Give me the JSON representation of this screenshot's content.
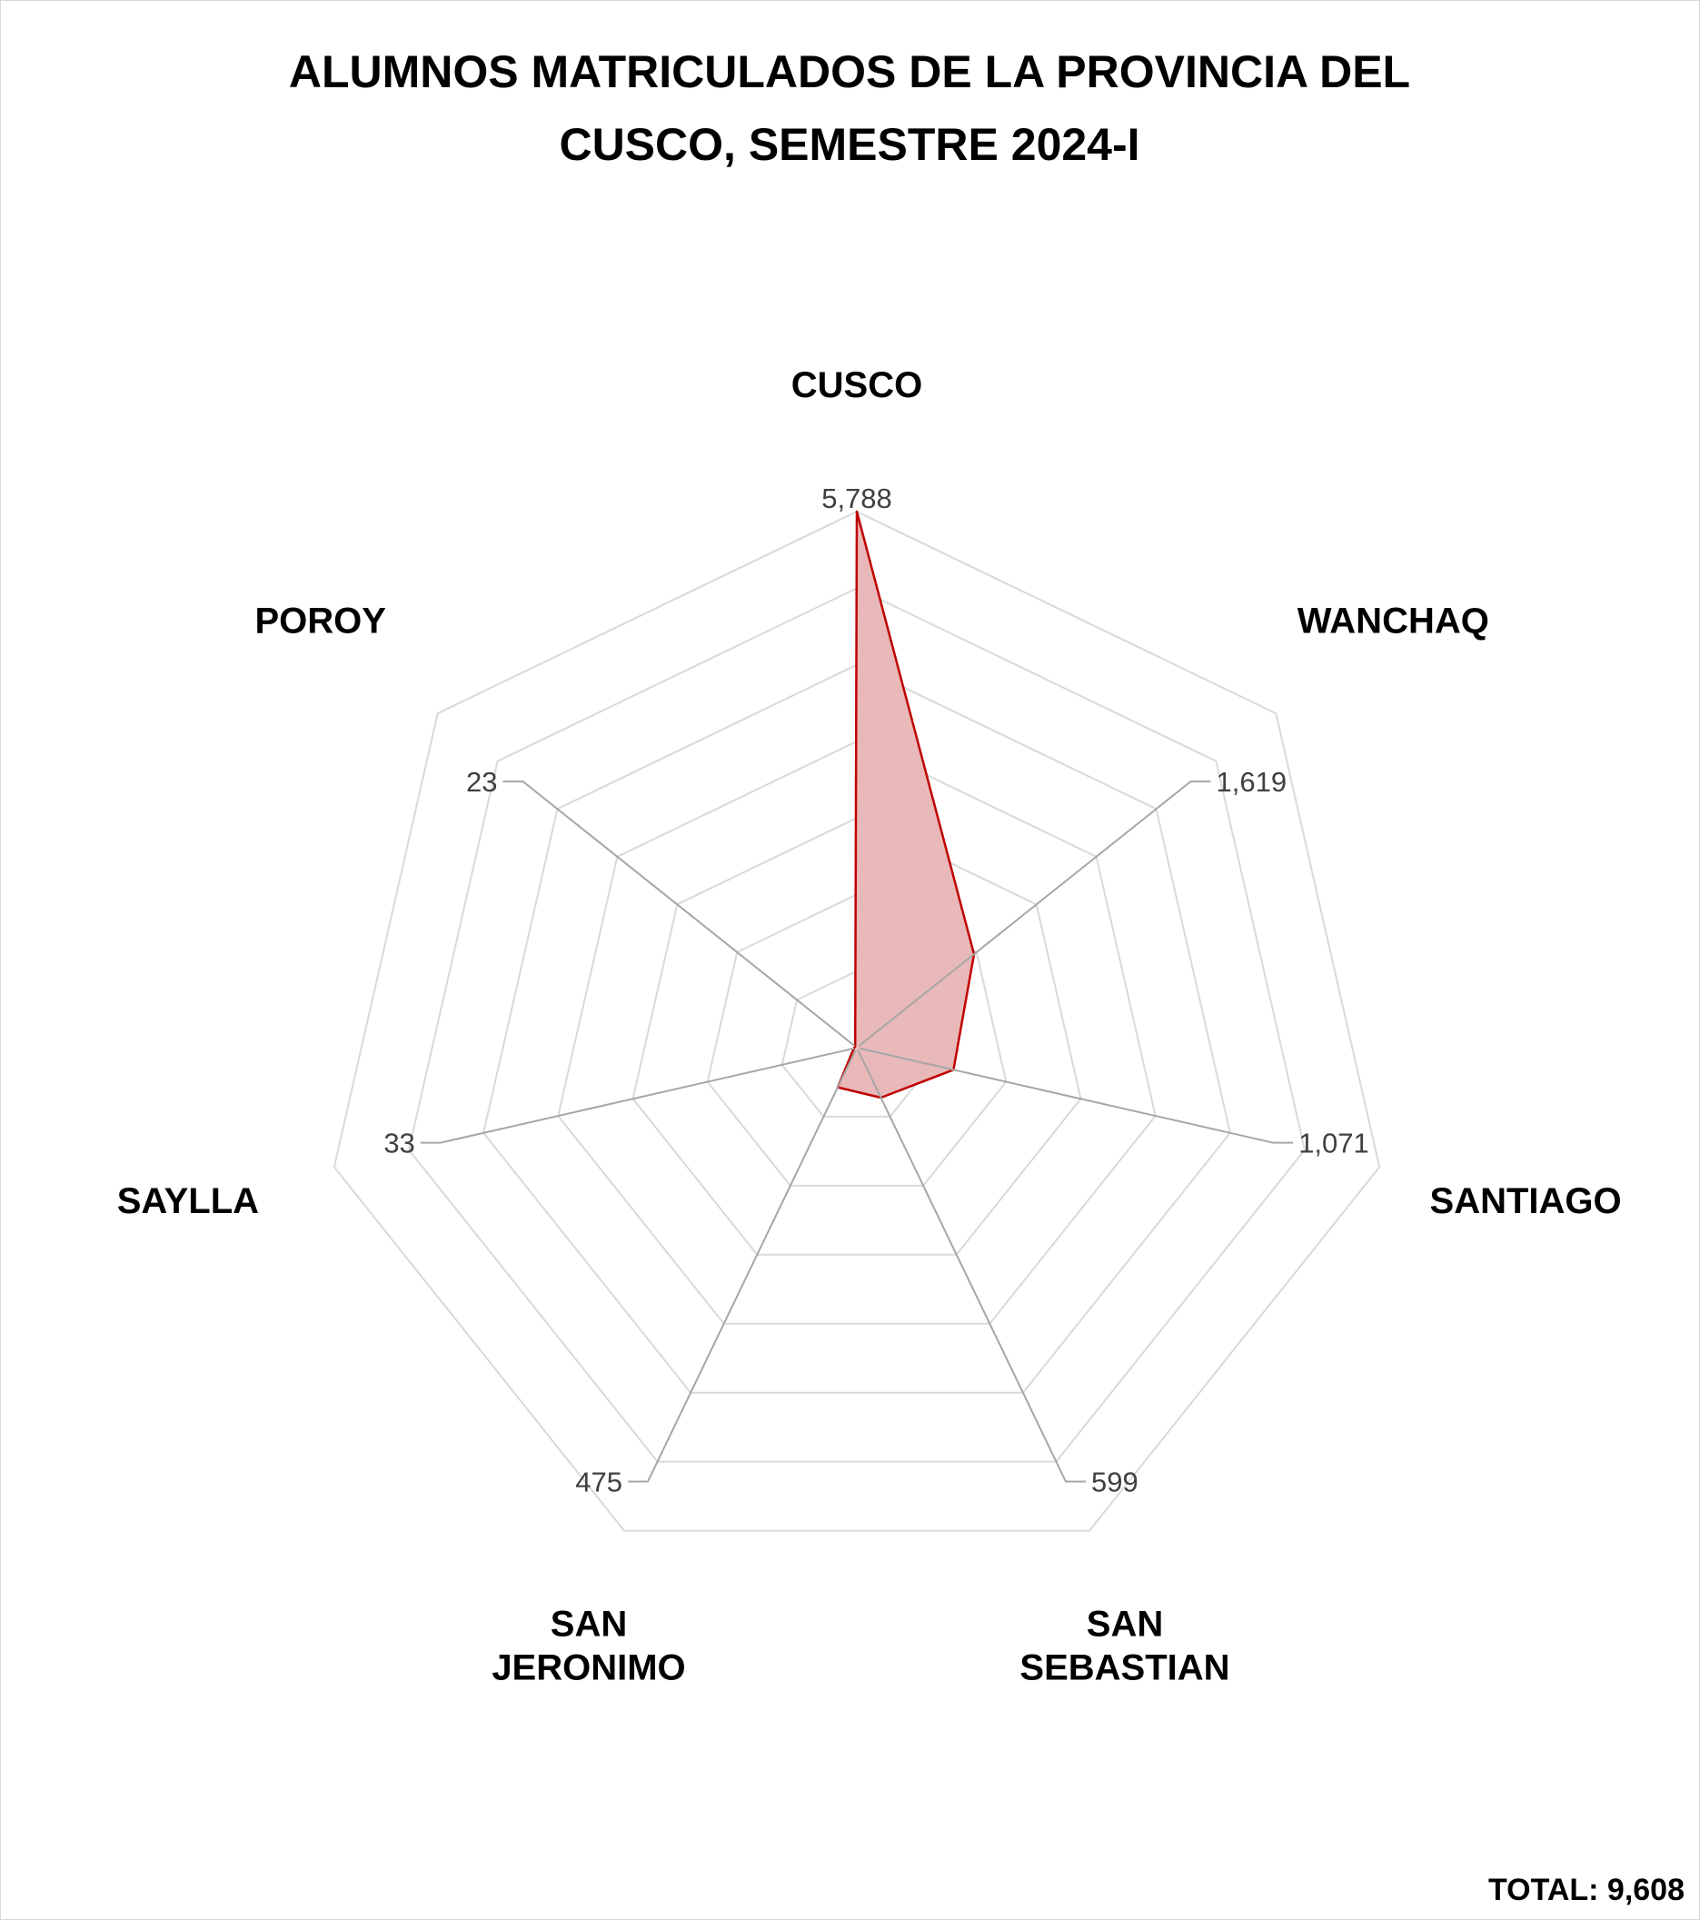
{
  "chart_data": {
    "type": "radar",
    "title": [
      "ALUMNOS MATRICULADOS DE LA PROVINCIA DEL",
      "CUSCO, SEMESTRE 2024-I"
    ],
    "categories": [
      [
        "CUSCO"
      ],
      [
        "WANCHAQ"
      ],
      [
        "SANTIAGO"
      ],
      [
        "SAN",
        "SEBASTIAN"
      ],
      [
        "SAN",
        "JERONIMO"
      ],
      [
        "SAYLLA"
      ],
      [
        "POROY"
      ]
    ],
    "values": [
      5788,
      1619,
      1071,
      599,
      475,
      33,
      23
    ],
    "value_labels": [
      "5,788",
      "1,619",
      "1,071",
      "599",
      "475",
      "33",
      "23"
    ],
    "rlim": [
      0,
      5788
    ],
    "grid_rings": 7,
    "series_color": "#c00000",
    "series_fill": "#e8b4b4",
    "grid_color": "#d9d9d9",
    "spoke_color": "#a6a6a6",
    "total_label": "TOTAL: 9,608"
  }
}
